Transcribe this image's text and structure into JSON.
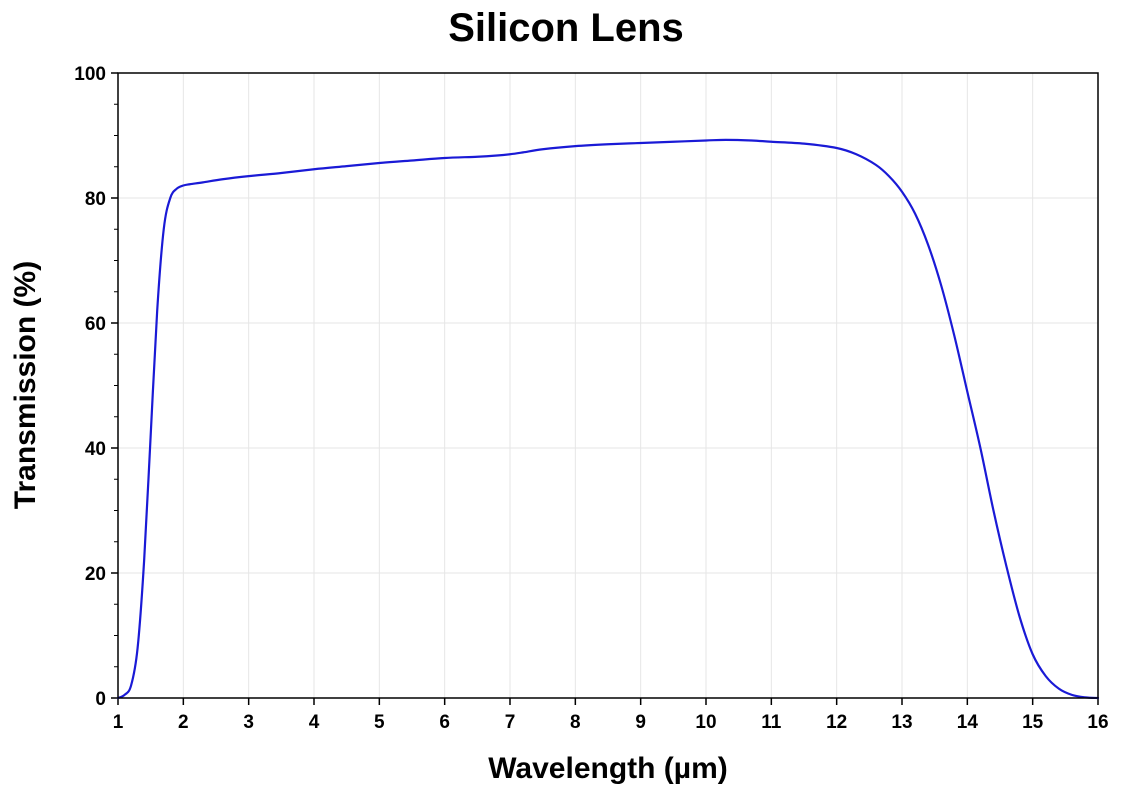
{
  "chart_data": {
    "type": "line",
    "title": "Silicon Lens",
    "xlabel": "Wavelength (µm)",
    "ylabel": "Transmission (%)",
    "xlim": [
      1,
      16
    ],
    "ylim": [
      0,
      100
    ],
    "x_ticks": [
      1,
      2,
      3,
      4,
      5,
      6,
      7,
      8,
      9,
      10,
      11,
      12,
      13,
      14,
      15,
      16
    ],
    "y_ticks": [
      0,
      20,
      40,
      60,
      80,
      100
    ],
    "grid": true,
    "legend": "none",
    "line_color": "#1a1ad6",
    "series": [
      {
        "x": [
          1.0,
          1.1,
          1.2,
          1.3,
          1.4,
          1.5,
          1.6,
          1.7,
          1.8,
          1.9,
          2.0,
          2.1,
          2.3,
          2.6,
          3.0,
          3.5,
          4.0,
          4.5,
          5.0,
          5.5,
          6.0,
          6.5,
          6.8,
          7.0,
          7.2,
          7.5,
          8.0,
          8.5,
          9.0,
          9.5,
          10.0,
          10.3,
          10.7,
          11.0,
          11.5,
          12.0,
          12.3,
          12.6,
          12.8,
          13.0,
          13.2,
          13.4,
          13.6,
          13.8,
          14.0,
          14.2,
          14.4,
          14.6,
          14.8,
          15.0,
          15.2,
          15.4,
          15.6,
          15.8,
          16.0
        ],
        "y": [
          0,
          0.5,
          2,
          8,
          22,
          42,
          62,
          75,
          80,
          81.5,
          82,
          82.2,
          82.5,
          83,
          83.5,
          84,
          84.6,
          85.1,
          85.6,
          86,
          86.4,
          86.6,
          86.8,
          87,
          87.3,
          87.8,
          88.3,
          88.6,
          88.8,
          89,
          89.2,
          89.3,
          89.2,
          89,
          88.7,
          88,
          87,
          85.3,
          83.5,
          81,
          77.5,
          72.5,
          66,
          58,
          49,
          40,
          30,
          21,
          13,
          7,
          3.5,
          1.5,
          0.5,
          0.1,
          0
        ]
      }
    ]
  }
}
